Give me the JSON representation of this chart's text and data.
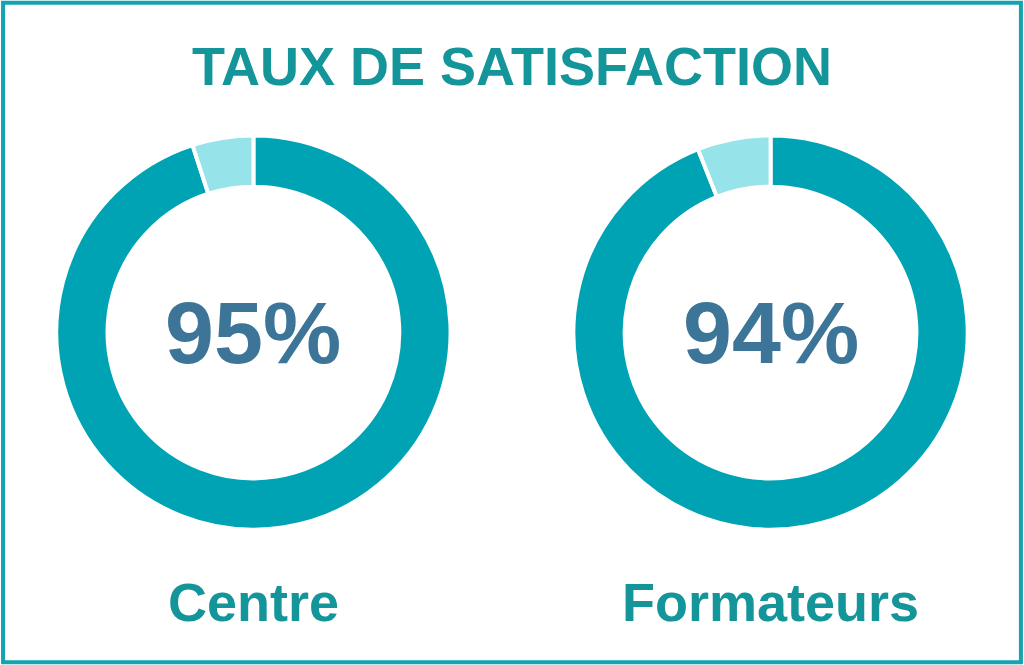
{
  "chart_data": [
    {
      "type": "donut",
      "title": "TAUX DE SATISFACTION",
      "categories": [
        null,
        null
      ],
      "values": [
        95,
        5
      ],
      "colors": [
        "#00a3b4",
        "#96e3ea"
      ],
      "annotations": [
        "95%"
      ],
      "xlabel": "Centre",
      "legend": false
    },
    {
      "type": "donut",
      "categories": [
        null,
        null
      ],
      "values": [
        94,
        6
      ],
      "colors": [
        "#00a3b4",
        "#96e3ea"
      ],
      "annotations": [
        "94%"
      ],
      "xlabel": "Formateurs",
      "legend": false
    }
  ]
}
